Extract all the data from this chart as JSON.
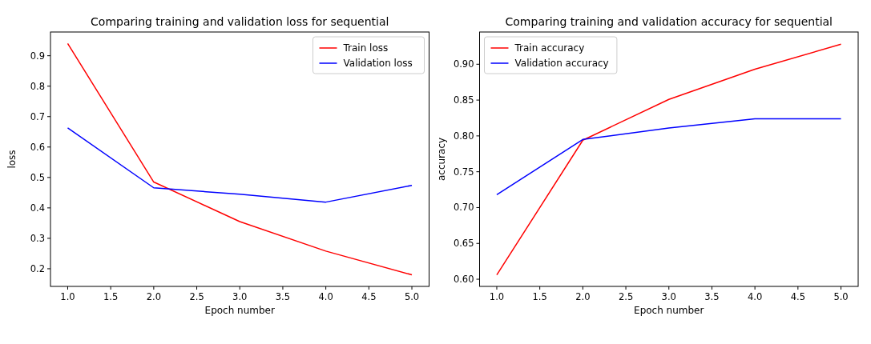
{
  "chart_data": [
    {
      "type": "line",
      "title": "Comparing training and validation loss for sequential",
      "xlabel": "Epoch number",
      "ylabel": "loss",
      "x": [
        1,
        2,
        3,
        4,
        5
      ],
      "series": [
        {
          "name": "Train loss",
          "color": "#ff0000",
          "values": [
            0.94,
            0.485,
            0.355,
            0.258,
            0.18
          ]
        },
        {
          "name": "Validation loss",
          "color": "#0000ff",
          "values": [
            0.663,
            0.466,
            0.445,
            0.419,
            0.474
          ]
        }
      ],
      "xlim": [
        0.8,
        5.2
      ],
      "xticks": [
        {
          "value": 1,
          "label": "1.0"
        },
        1.5,
        {
          "value": 2,
          "label": "2.0"
        },
        2.5,
        {
          "value": 3,
          "label": "3.0"
        },
        3.5,
        {
          "value": 4,
          "label": "4.0"
        },
        4.5,
        {
          "value": 5,
          "label": "5.0"
        }
      ],
      "ylim": [
        0.142,
        0.978
      ],
      "yticks": [
        0.2,
        0.3,
        0.4,
        0.5,
        0.6,
        0.7,
        0.8,
        0.9
      ],
      "legend": "top right",
      "grid": false
    },
    {
      "type": "line",
      "title": "Comparing training and validation accuracy for sequential",
      "xlabel": "Epoch number",
      "ylabel": "accuracy",
      "x": [
        1,
        2,
        3,
        4,
        5
      ],
      "series": [
        {
          "name": "Train accuracy",
          "color": "#ff0000",
          "values": [
            0.606,
            0.794,
            0.851,
            0.893,
            0.928
          ]
        },
        {
          "name": "Validation accuracy",
          "color": "#0000ff",
          "values": [
            0.718,
            0.795,
            0.811,
            0.824,
            0.824
          ]
        }
      ],
      "xlim": [
        0.8,
        5.2
      ],
      "xticks": [
        {
          "value": 1,
          "label": "1.0"
        },
        1.5,
        {
          "value": 2,
          "label": "2.0"
        },
        2.5,
        {
          "value": 3,
          "label": "3.0"
        },
        3.5,
        {
          "value": 4,
          "label": "4.0"
        },
        4.5,
        {
          "value": 5,
          "label": "5.0"
        }
      ],
      "ylim": [
        0.59,
        0.945
      ],
      "yticks": [
        {
          "value": 0.6,
          "label": "0.60"
        },
        {
          "value": 0.65,
          "label": "0.65"
        },
        {
          "value": 0.7,
          "label": "0.70"
        },
        {
          "value": 0.75,
          "label": "0.75"
        },
        {
          "value": 0.8,
          "label": "0.80"
        },
        {
          "value": 0.85,
          "label": "0.85"
        },
        {
          "value": 0.9,
          "label": "0.90"
        }
      ],
      "legend": "top left",
      "grid": false
    }
  ]
}
